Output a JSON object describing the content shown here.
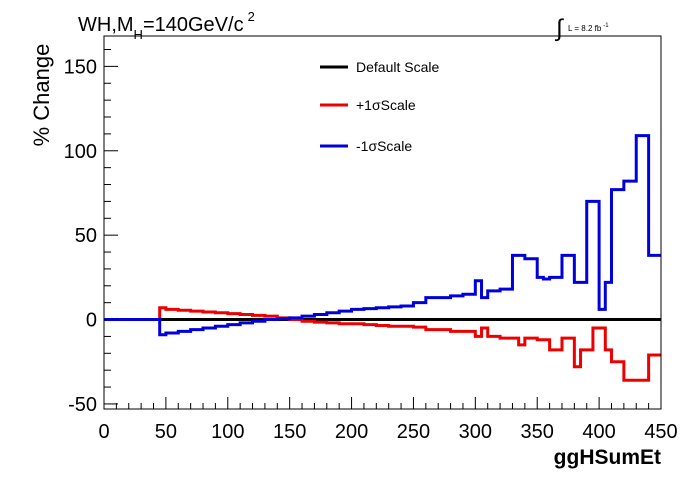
{
  "chart_data": {
    "type": "line",
    "title_prefix": "WH,M",
    "title_sub": "H",
    "title_suffix": "=140GeV/c",
    "title_sup": "2",
    "lumi_label": "L = 8.2 fb",
    "lumi_sup": "-1",
    "xlabel": "ggHSumEt",
    "ylabel": "% Change",
    "xlim": [
      0,
      450
    ],
    "ylim": [
      -53,
      168
    ],
    "xticks": [
      "0",
      "50",
      "100",
      "150",
      "200",
      "250",
      "300",
      "350",
      "400",
      "450"
    ],
    "yticks": [
      "-50",
      "0",
      "50",
      "100",
      "150"
    ],
    "grid": false,
    "legend_position": "top-center",
    "bin_edges": [
      0,
      10,
      20,
      30,
      40,
      45,
      50,
      60,
      70,
      80,
      90,
      100,
      110,
      120,
      130,
      140,
      150,
      160,
      170,
      180,
      190,
      200,
      210,
      220,
      230,
      240,
      250,
      260,
      270,
      280,
      290,
      300,
      305,
      310,
      320,
      330,
      335,
      340,
      350,
      355,
      360,
      370,
      375,
      380,
      385,
      390,
      395,
      400,
      405,
      410,
      420,
      430,
      440,
      450
    ],
    "series": [
      {
        "name": "Default Scale",
        "color": "#000000",
        "values": [
          0,
          0,
          0,
          0,
          0,
          0,
          0,
          0,
          0,
          0,
          0,
          0,
          0,
          0,
          0,
          0,
          0,
          0,
          0,
          0,
          0,
          0,
          0,
          0,
          0,
          0,
          0,
          0,
          0,
          0,
          0,
          0,
          0,
          0,
          0,
          0,
          0,
          0,
          0,
          0,
          0,
          0,
          0,
          0,
          0,
          0,
          0,
          0,
          0,
          0,
          0,
          0,
          0
        ]
      },
      {
        "name": "+1σScale",
        "color": "#ee0000",
        "values": [
          0,
          0,
          0,
          0,
          0,
          7,
          6,
          5.5,
          5,
          4.5,
          4,
          3.5,
          3,
          2.5,
          2,
          1,
          0,
          -1,
          -1.5,
          -2,
          -2.5,
          -2.5,
          -3,
          -3.5,
          -4,
          -4,
          -4.5,
          -6,
          -6,
          -7,
          -7,
          -10,
          -5,
          -10,
          -11,
          -11,
          -15,
          -11,
          -12,
          -12,
          -18,
          -11,
          -11,
          -28,
          -18,
          -18,
          -5,
          -5,
          -18,
          -25,
          -36,
          -36,
          -21
        ]
      },
      {
        "name": "-1σScale",
        "color": "#0000dd",
        "values": [
          0,
          0,
          0,
          0,
          0,
          -9,
          -8,
          -7,
          -6,
          -5,
          -4,
          -3,
          -2,
          -1,
          0,
          0.5,
          1,
          2,
          3,
          4,
          5,
          6,
          6.5,
          7,
          7.5,
          8,
          10,
          13,
          13,
          14,
          15,
          23,
          13,
          17,
          18,
          38,
          38,
          36,
          25,
          24,
          25,
          38,
          38,
          22,
          22,
          70,
          70,
          6,
          22,
          77,
          82,
          109,
          38
        ]
      }
    ]
  }
}
